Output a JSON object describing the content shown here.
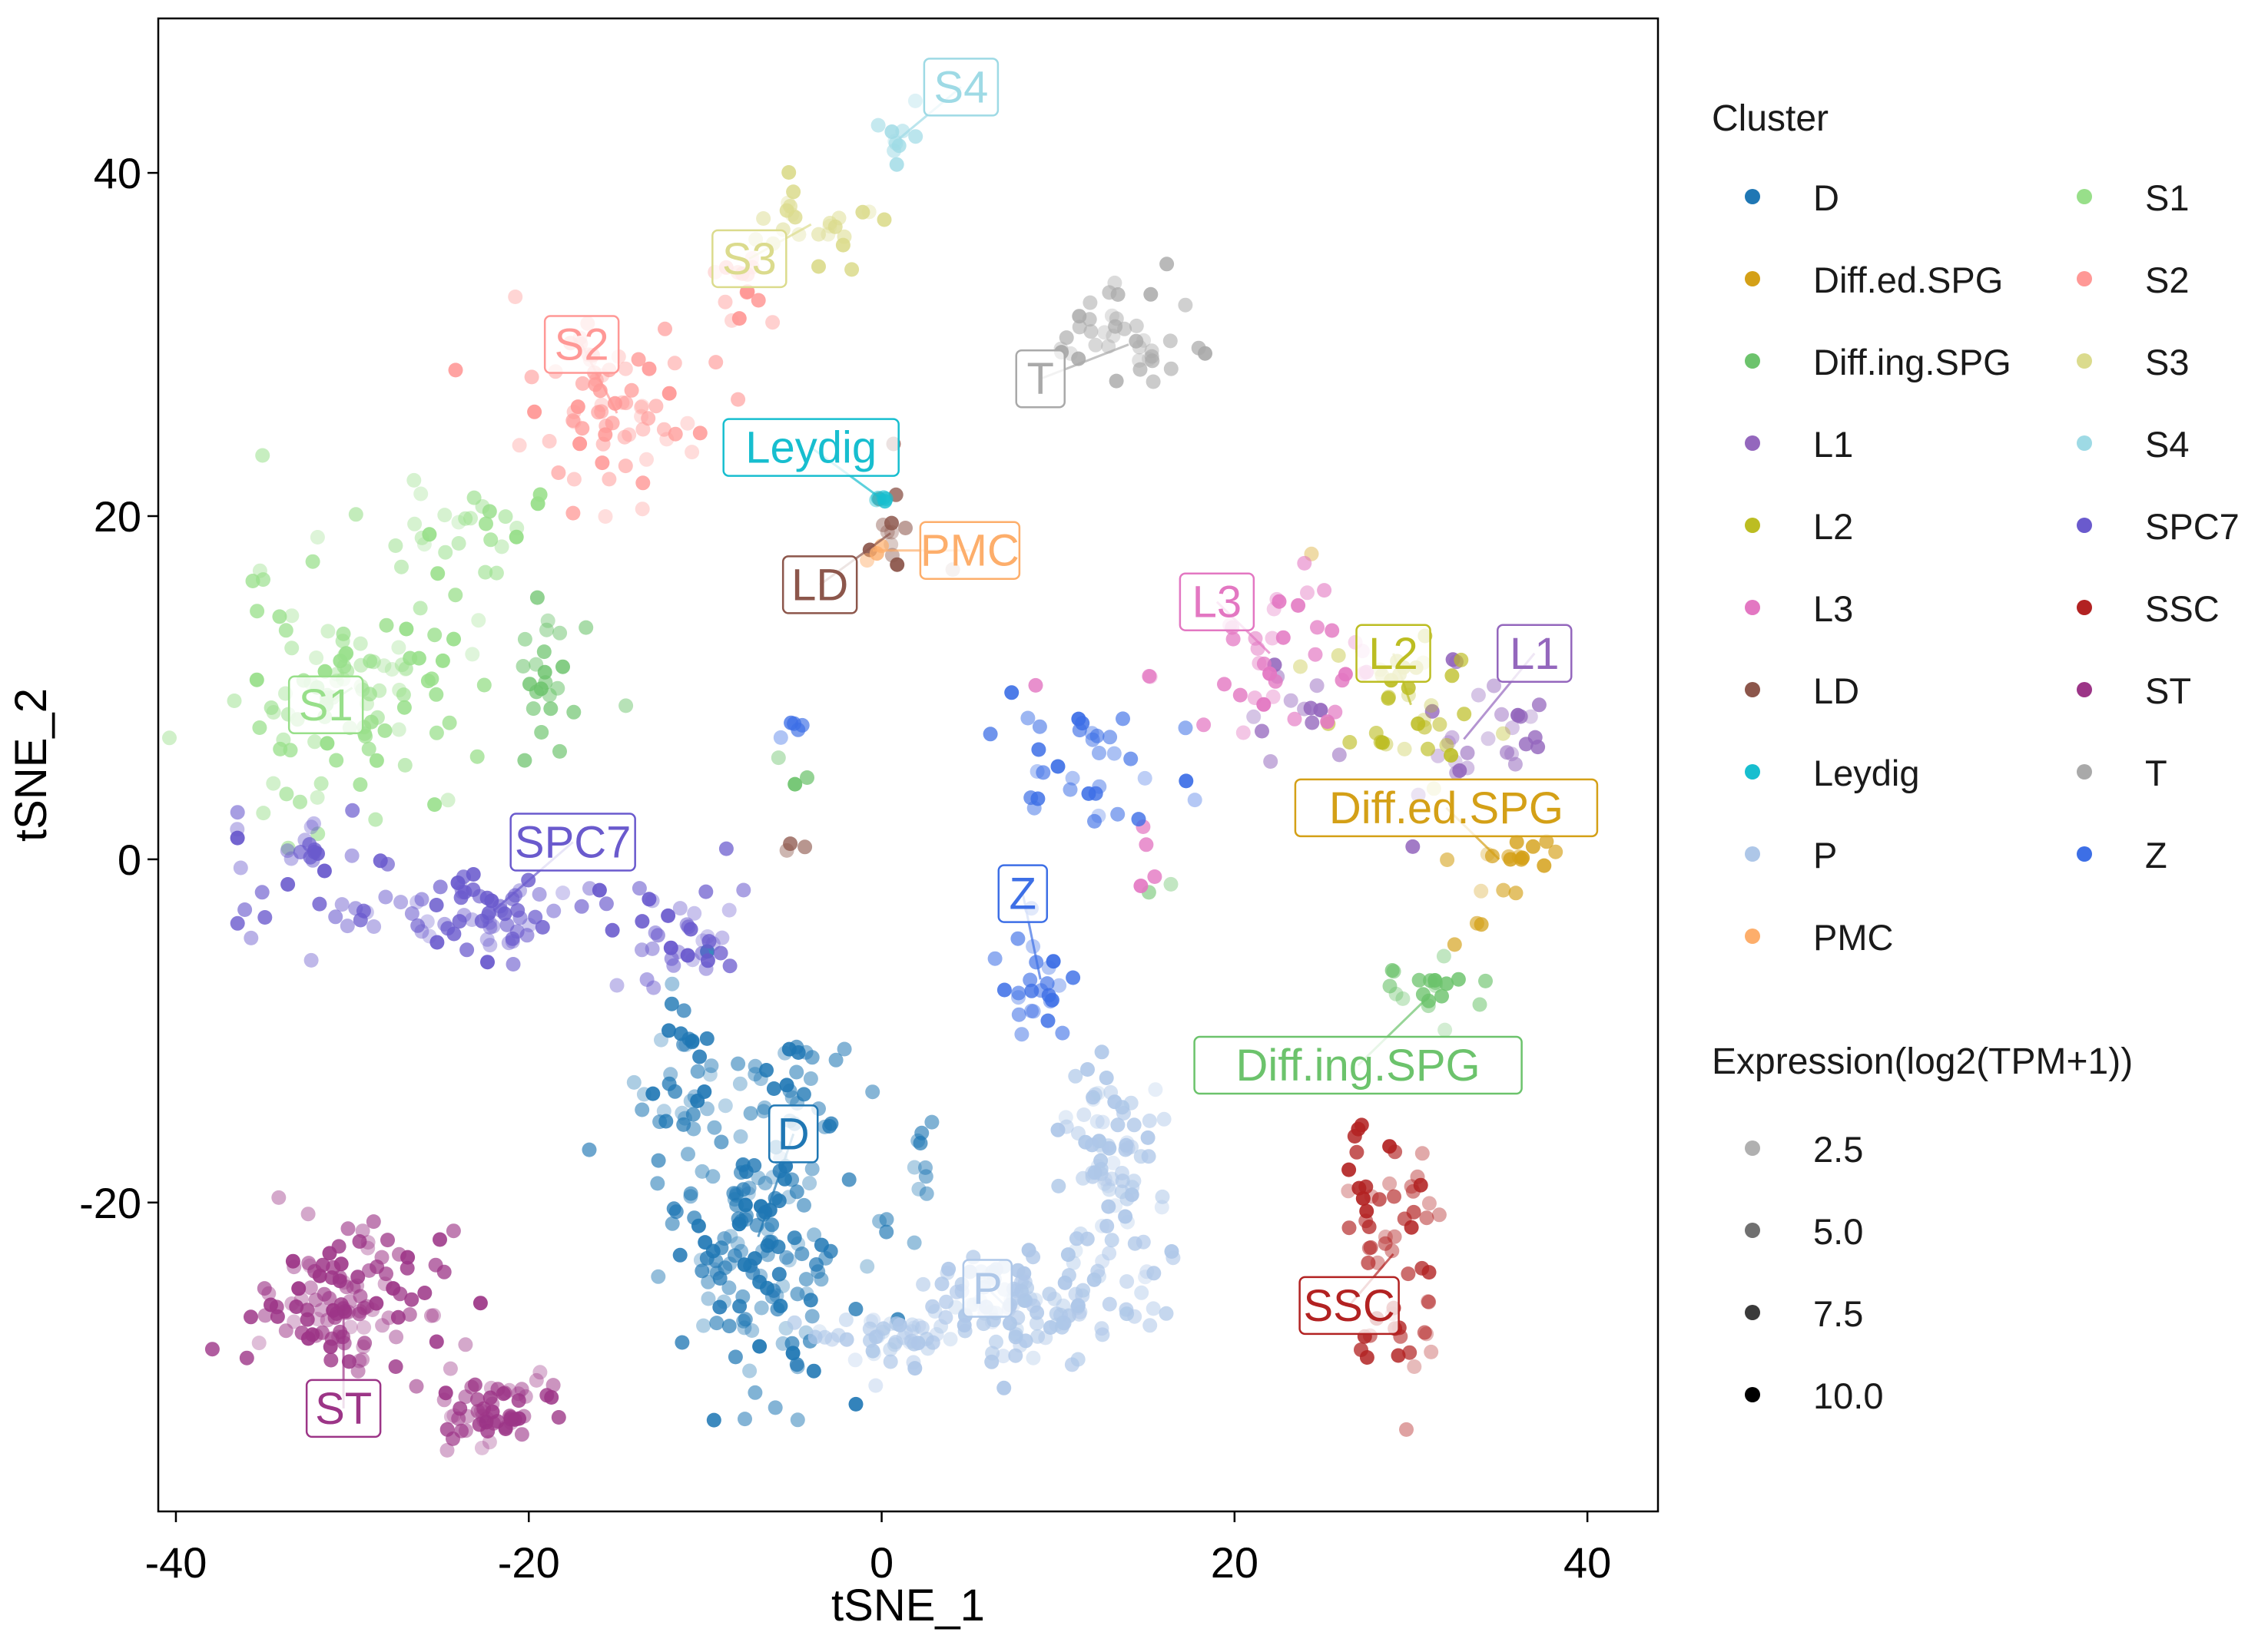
{
  "chart_data": {
    "type": "scatter",
    "title": "",
    "xlabel": "tSNE_1",
    "ylabel": "tSNE_2",
    "xlim": [
      -41,
      44
    ],
    "ylim": [
      -38,
      49
    ],
    "x_ticks": [
      -40,
      -20,
      0,
      20,
      40
    ],
    "y_ticks": [
      40,
      20,
      0,
      -20
    ],
    "x_tick_labels": [
      "-40",
      "-20",
      "0",
      "20",
      "40"
    ],
    "y_tick_labels": [
      "40",
      "20",
      "0",
      "-20"
    ],
    "grid": false,
    "legend_position": "right",
    "clusters": [
      {
        "name": "D",
        "color": "#1F77B4",
        "label_pos": [
          -5,
          -16
        ],
        "regions": [
          {
            "cx": -7,
            "cy": -22,
            "rx": 5,
            "ry": 8,
            "n": 170
          },
          {
            "cx": -11,
            "cy": -13,
            "rx": 2,
            "ry": 5,
            "n": 35
          },
          {
            "cx": -6,
            "cy": -12,
            "rx": 4,
            "ry": 2,
            "n": 20
          },
          {
            "cx": 2,
            "cy": -18,
            "rx": 0.7,
            "ry": 3,
            "n": 10
          }
        ]
      },
      {
        "name": "Diff.ed.SPG",
        "color": "#D4A017",
        "label_pos": [
          32,
          3
        ],
        "regions": [
          {
            "cx": 35,
            "cy": 0,
            "rx": 2.5,
            "ry": 2,
            "n": 16
          },
          {
            "cx": 33,
            "cy": -4,
            "rx": 1,
            "ry": 1.5,
            "n": 3
          },
          {
            "cx": 24,
            "cy": 18,
            "rx": 0.5,
            "ry": 0.5,
            "n": 1
          }
        ]
      },
      {
        "name": "Diff.ing.SPG",
        "color": "#6CC36C",
        "label_pos": [
          27,
          -12
        ],
        "regions": [
          {
            "cx": 31,
            "cy": -8,
            "rx": 3,
            "ry": 2.5,
            "n": 20
          },
          {
            "cx": -19,
            "cy": 10,
            "rx": 2.5,
            "ry": 5,
            "n": 24
          },
          {
            "cx": -5,
            "cy": 6,
            "rx": 1,
            "ry": 2,
            "n": 3
          },
          {
            "cx": 16,
            "cy": -2,
            "rx": 1,
            "ry": 1,
            "n": 2
          }
        ]
      },
      {
        "name": "L1",
        "color": "#9467BD",
        "label_pos": [
          37,
          12
        ],
        "regions": [
          {
            "cx": 33,
            "cy": 7,
            "rx": 5,
            "ry": 4,
            "n": 28
          },
          {
            "cx": 23,
            "cy": 9,
            "rx": 3,
            "ry": 2,
            "n": 12
          }
        ]
      },
      {
        "name": "L2",
        "color": "#BCBD22",
        "label_pos": [
          29,
          12
        ],
        "regions": [
          {
            "cx": 30,
            "cy": 9,
            "rx": 4,
            "ry": 4,
            "n": 35
          }
        ]
      },
      {
        "name": "L3",
        "color": "#E377C2",
        "label_pos": [
          19,
          15
        ],
        "regions": [
          {
            "cx": 22,
            "cy": 12,
            "rx": 6,
            "ry": 4,
            "n": 40
          },
          {
            "cx": 15,
            "cy": 1,
            "rx": 1,
            "ry": 2,
            "n": 4
          }
        ]
      },
      {
        "name": "LD",
        "color": "#8C564B",
        "label_pos": [
          -3.5,
          16
        ],
        "regions": [
          {
            "cx": 0.5,
            "cy": 19,
            "rx": 1.2,
            "ry": 3,
            "n": 12
          },
          {
            "cx": -5,
            "cy": 0.5,
            "rx": 1,
            "ry": 1,
            "n": 3
          },
          {
            "cx": 4,
            "cy": 17,
            "rx": 0.4,
            "ry": 0.4,
            "n": 1
          }
        ]
      },
      {
        "name": "Leydig",
        "color": "#17BECF",
        "label_pos": [
          -4,
          24
        ],
        "regions": [
          {
            "cx": 0,
            "cy": 21,
            "rx": 1.2,
            "ry": 0.8,
            "n": 5
          }
        ]
      },
      {
        "name": "P",
        "color": "#AEC7E8",
        "label_pos": [
          6,
          -25
        ],
        "regions": [
          {
            "cx": 7,
            "cy": -26,
            "rx": 6,
            "ry": 3,
            "n": 120
          },
          {
            "cx": 13,
            "cy": -18,
            "rx": 3,
            "ry": 6,
            "n": 90
          },
          {
            "cx": 0,
            "cy": -28,
            "rx": 4,
            "ry": 1.5,
            "n": 40
          }
        ]
      },
      {
        "name": "PMC",
        "color": "#FDAE6B",
        "label_pos": [
          5,
          18
        ],
        "regions": [
          {
            "cx": -0.5,
            "cy": 18,
            "rx": 0.8,
            "ry": 1,
            "n": 3
          }
        ]
      },
      {
        "name": "S1",
        "color": "#98DF8A",
        "label_pos": [
          -31.5,
          9
        ],
        "regions": [
          {
            "cx": -30,
            "cy": 10,
            "rx": 6,
            "ry": 7,
            "n": 110
          },
          {
            "cx": -23,
            "cy": 19,
            "rx": 4,
            "ry": 2.5,
            "n": 25
          }
        ]
      },
      {
        "name": "S2",
        "color": "#FF9896",
        "label_pos": [
          -17,
          30
        ],
        "regions": [
          {
            "cx": -15,
            "cy": 26,
            "rx": 5,
            "ry": 5,
            "n": 70
          },
          {
            "cx": -8,
            "cy": 33,
            "rx": 2,
            "ry": 2.5,
            "n": 15
          }
        ]
      },
      {
        "name": "S3",
        "color": "#DBDB8D",
        "label_pos": [
          -7.5,
          35
        ],
        "regions": [
          {
            "cx": -4,
            "cy": 37,
            "rx": 4,
            "ry": 2,
            "n": 25
          }
        ]
      },
      {
        "name": "S4",
        "color": "#9EDAE5",
        "label_pos": [
          4.5,
          45
        ],
        "regions": [
          {
            "cx": 1,
            "cy": 42,
            "rx": 1.5,
            "ry": 2,
            "n": 10
          }
        ]
      },
      {
        "name": "SPC7",
        "color": "#6A5ACD",
        "label_pos": [
          -17.5,
          1
        ],
        "regions": [
          {
            "cx": -22,
            "cy": -3,
            "rx": 10,
            "ry": 2.2,
            "n": 90
          },
          {
            "cx": -33,
            "cy": 1,
            "rx": 3,
            "ry": 2,
            "n": 20
          },
          {
            "cx": -11,
            "cy": -5,
            "rx": 3,
            "ry": 3,
            "n": 30
          }
        ]
      },
      {
        "name": "SSC",
        "color": "#B22222",
        "label_pos": [
          26.5,
          -26
        ],
        "regions": [
          {
            "cx": 29,
            "cy": -23,
            "rx": 2.5,
            "ry": 7,
            "n": 60
          }
        ]
      },
      {
        "name": "ST",
        "color": "#9C3587",
        "label_pos": [
          -30.5,
          -32
        ],
        "regions": [
          {
            "cx": -30.5,
            "cy": -26,
            "rx": 4.5,
            "ry": 4,
            "n": 120
          },
          {
            "cx": -22,
            "cy": -32,
            "rx": 3,
            "ry": 2.2,
            "n": 60
          }
        ]
      },
      {
        "name": "T",
        "color": "#A9A9A9",
        "label_pos": [
          9,
          28
        ],
        "regions": [
          {
            "cx": 14,
            "cy": 30,
            "rx": 4,
            "ry": 3,
            "n": 40
          }
        ]
      },
      {
        "name": "Z",
        "color": "#3D6FE6",
        "label_pos": [
          8,
          -2
        ],
        "regions": [
          {
            "cx": 9,
            "cy": -7,
            "rx": 2,
            "ry": 3,
            "n": 25
          },
          {
            "cx": 12,
            "cy": 5,
            "rx": 4,
            "ry": 4,
            "n": 35
          },
          {
            "cx": -5,
            "cy": 7.5,
            "rx": 1,
            "ry": 0.8,
            "n": 5
          }
        ]
      }
    ],
    "legend": {
      "cluster_title": "Cluster",
      "cluster_col1": [
        "D",
        "Diff.ed.SPG",
        "Diff.ing.SPG",
        "L1",
        "L2",
        "L3",
        "LD",
        "Leydig",
        "P",
        "PMC"
      ],
      "cluster_col2": [
        "S1",
        "S2",
        "S3",
        "S4",
        "SPC7",
        "SSC",
        "ST",
        "T",
        "Z"
      ],
      "expression_title": "Expression(log2(TPM+1))",
      "expression_levels": [
        {
          "label": "2.5",
          "color": "#b0b0b0"
        },
        {
          "label": "5.0",
          "color": "#707070"
        },
        {
          "label": "7.5",
          "color": "#3a3a3a"
        },
        {
          "label": "10.0",
          "color": "#000000"
        }
      ]
    }
  }
}
